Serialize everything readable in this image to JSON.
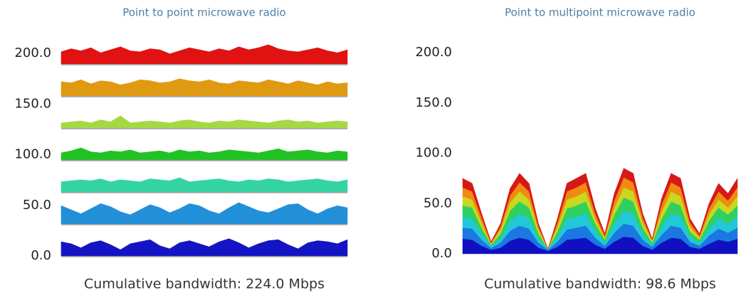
{
  "chart_data": [
    {
      "type": "ridgeline",
      "title": "Point to point microwave radio",
      "note": "Cumulative bandwidth: 224.0 Mbps",
      "ylim": [
        0,
        200
      ],
      "yticks": [
        {
          "value": 0,
          "label": "0.0"
        },
        {
          "value": 50,
          "label": "50.0"
        },
        {
          "value": 100,
          "label": "100.0"
        },
        {
          "value": 150,
          "label": "150.0"
        },
        {
          "value": 200,
          "label": "200.0"
        }
      ],
      "series": [
        {
          "color": "#1414c4",
          "values": [
            14,
            12,
            8,
            13,
            15,
            11,
            6,
            12,
            14,
            16,
            10,
            7,
            13,
            15,
            12,
            9,
            14,
            17,
            13,
            8,
            12,
            15,
            16,
            11,
            7,
            13,
            15,
            14,
            12,
            16
          ]
        },
        {
          "color": "#2290d8",
          "values": [
            18,
            14,
            10,
            15,
            20,
            17,
            12,
            9,
            14,
            19,
            16,
            11,
            15,
            20,
            18,
            13,
            10,
            16,
            21,
            17,
            13,
            11,
            15,
            19,
            20,
            14,
            10,
            15,
            18,
            16
          ]
        },
        {
          "color": "#34d4a2",
          "values": [
            10,
            11,
            12,
            11,
            13,
            10,
            12,
            11,
            10,
            13,
            12,
            11,
            14,
            10,
            11,
            12,
            13,
            11,
            10,
            12,
            11,
            13,
            12,
            10,
            11,
            12,
            13,
            11,
            10,
            12
          ]
        },
        {
          "color": "#22c224",
          "values": [
            7,
            9,
            12,
            8,
            7,
            9,
            8,
            10,
            7,
            8,
            9,
            7,
            10,
            8,
            9,
            7,
            8,
            10,
            9,
            8,
            7,
            9,
            11,
            8,
            9,
            10,
            8,
            7,
            9,
            8
          ]
        },
        {
          "color": "#a6d843",
          "values": [
            5,
            6,
            7,
            5,
            8,
            6,
            12,
            5,
            6,
            7,
            6,
            5,
            7,
            8,
            6,
            5,
            7,
            6,
            8,
            7,
            6,
            5,
            7,
            8,
            6,
            7,
            5,
            6,
            7,
            6
          ]
        },
        {
          "color": "#e09a12",
          "values": [
            14,
            13,
            16,
            12,
            15,
            14,
            11,
            13,
            16,
            15,
            13,
            14,
            17,
            15,
            14,
            16,
            13,
            12,
            15,
            14,
            13,
            16,
            14,
            12,
            15,
            13,
            11,
            14,
            12,
            13
          ]
        },
        {
          "color": "#e01212",
          "values": [
            12,
            15,
            13,
            16,
            11,
            14,
            17,
            13,
            12,
            15,
            14,
            10,
            13,
            16,
            14,
            12,
            15,
            13,
            17,
            14,
            16,
            19,
            15,
            13,
            12,
            14,
            16,
            13,
            11,
            14
          ]
        }
      ]
    },
    {
      "type": "stacked_area",
      "title": "Point to multipoint microwave radio",
      "note": "Cumulative bandwidth:  98.6 Mbps",
      "ylim": [
        0,
        200
      ],
      "yticks": [
        {
          "value": 0,
          "label": "0.0"
        },
        {
          "value": 50,
          "label": "50.0"
        },
        {
          "value": 100,
          "label": "100.0"
        },
        {
          "value": 150,
          "label": "150.0"
        },
        {
          "value": 200,
          "label": "200.0"
        }
      ],
      "series": [
        {
          "color": "#1010c0",
          "values": [
            15,
            14,
            8,
            4,
            6,
            13,
            16,
            14,
            6,
            3,
            7,
            14,
            15,
            16,
            9,
            5,
            12,
            17,
            16,
            8,
            4,
            11,
            16,
            15,
            7,
            5,
            10,
            14,
            12,
            15
          ]
        },
        {
          "color": "#1a78e0",
          "values": [
            11,
            11,
            6,
            2,
            5,
            10,
            12,
            11,
            5,
            1,
            5,
            10,
            11,
            12,
            7,
            3,
            9,
            13,
            12,
            6,
            3,
            8,
            12,
            11,
            5,
            3,
            8,
            11,
            9,
            11
          ]
        },
        {
          "color": "#20c8d8",
          "values": [
            11,
            10,
            6,
            2,
            4,
            10,
            12,
            10,
            4,
            1,
            5,
            11,
            11,
            12,
            7,
            3,
            9,
            13,
            12,
            6,
            2,
            8,
            12,
            11,
            5,
            3,
            7,
            10,
            9,
            11
          ]
        },
        {
          "color": "#30d060",
          "values": [
            11,
            11,
            6,
            1,
            5,
            10,
            12,
            11,
            5,
            0,
            5,
            10,
            11,
            12,
            7,
            3,
            9,
            13,
            12,
            6,
            2,
            8,
            12,
            11,
            5,
            3,
            8,
            11,
            9,
            11
          ]
        },
        {
          "color": "#c8d820",
          "values": [
            9,
            8,
            5,
            1,
            4,
            8,
            10,
            8,
            4,
            0,
            5,
            9,
            9,
            10,
            5,
            2,
            7,
            10,
            10,
            5,
            2,
            7,
            10,
            9,
            5,
            2,
            6,
            8,
            7,
            9
          ]
        },
        {
          "color": "#f08a10",
          "values": [
            9,
            8,
            5,
            1,
            3,
            7,
            9,
            8,
            3,
            0,
            4,
            8,
            9,
            9,
            5,
            2,
            7,
            10,
            9,
            5,
            1,
            7,
            9,
            9,
            4,
            2,
            6,
            8,
            7,
            9
          ]
        },
        {
          "color": "#d81818",
          "values": [
            9,
            8,
            4,
            1,
            3,
            7,
            9,
            8,
            3,
            0,
            4,
            8,
            9,
            9,
            5,
            2,
            7,
            9,
            9,
            4,
            1,
            6,
            9,
            9,
            4,
            2,
            5,
            8,
            7,
            9
          ]
        }
      ]
    }
  ]
}
